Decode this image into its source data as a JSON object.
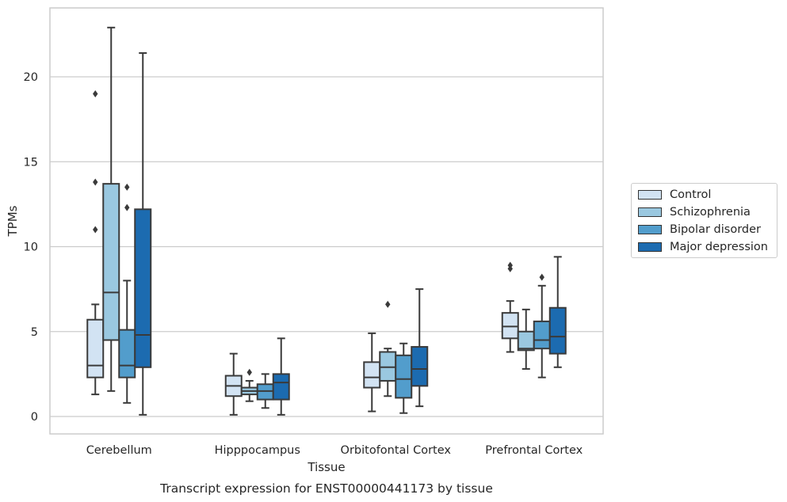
{
  "chart_data": {
    "type": "box",
    "title": "Transcript expression for ENST00000441173 by tissue",
    "xlabel": "Tissue",
    "ylabel": "TPMs",
    "ylim": [
      -1,
      24
    ],
    "yticks": [
      0,
      5,
      10,
      15,
      20
    ],
    "grid": "horizontal",
    "legend_position": "right",
    "categories": [
      "Cerebellum",
      "Hipppocampus",
      "Orbitofontal Cortex",
      "Prefrontal Cortex"
    ],
    "series": [
      {
        "name": "Control",
        "color": "#d2e3f3",
        "boxes": [
          {
            "whislo": 1.3,
            "q1": 2.3,
            "med": 3.0,
            "q3": 5.7,
            "whishi": 6.6,
            "fliers": [
              11.0,
              13.8,
              19.0
            ]
          },
          {
            "whislo": 0.1,
            "q1": 1.2,
            "med": 1.8,
            "q3": 2.4,
            "whishi": 3.7,
            "fliers": []
          },
          {
            "whislo": 0.3,
            "q1": 1.7,
            "med": 2.3,
            "q3": 3.2,
            "whishi": 4.9,
            "fliers": []
          },
          {
            "whislo": 3.8,
            "q1": 4.6,
            "med": 5.3,
            "q3": 6.1,
            "whishi": 6.8,
            "fliers": [
              8.7,
              8.9
            ]
          }
        ]
      },
      {
        "name": "Schizophrenia",
        "color": "#9ac8e0",
        "boxes": [
          {
            "whislo": 1.5,
            "q1": 4.5,
            "med": 7.3,
            "q3": 13.7,
            "whishi": 22.9,
            "fliers": []
          },
          {
            "whislo": 0.9,
            "q1": 1.3,
            "med": 1.5,
            "q3": 1.7,
            "whishi": 2.1,
            "fliers": [
              2.6
            ]
          },
          {
            "whislo": 1.2,
            "q1": 2.1,
            "med": 2.9,
            "q3": 3.8,
            "whishi": 4.0,
            "fliers": [
              6.6
            ]
          },
          {
            "whislo": 2.8,
            "q1": 3.9,
            "med": 4.0,
            "q3": 5.0,
            "whishi": 6.3,
            "fliers": []
          }
        ]
      },
      {
        "name": "Bipolar disorder",
        "color": "#529dcc",
        "boxes": [
          {
            "whislo": 0.8,
            "q1": 2.3,
            "med": 3.0,
            "q3": 5.1,
            "whishi": 8.0,
            "fliers": [
              12.3,
              13.5
            ]
          },
          {
            "whislo": 0.5,
            "q1": 1.0,
            "med": 1.5,
            "q3": 1.9,
            "whishi": 2.5,
            "fliers": []
          },
          {
            "whislo": 0.2,
            "q1": 1.1,
            "med": 2.2,
            "q3": 3.6,
            "whishi": 4.3,
            "fliers": []
          },
          {
            "whislo": 2.3,
            "q1": 4.0,
            "med": 4.5,
            "q3": 5.6,
            "whishi": 7.7,
            "fliers": [
              8.2
            ]
          }
        ]
      },
      {
        "name": "Major depression",
        "color": "#1c6bb0",
        "boxes": [
          {
            "whislo": 0.1,
            "q1": 2.9,
            "med": 4.8,
            "q3": 12.2,
            "whishi": 21.4,
            "fliers": []
          },
          {
            "whislo": 0.1,
            "q1": 1.0,
            "med": 2.0,
            "q3": 2.5,
            "whishi": 4.6,
            "fliers": []
          },
          {
            "whislo": 0.6,
            "q1": 1.8,
            "med": 2.8,
            "q3": 4.1,
            "whishi": 7.5,
            "fliers": []
          },
          {
            "whislo": 2.9,
            "q1": 3.7,
            "med": 4.7,
            "q3": 6.4,
            "whishi": 9.4,
            "fliers": []
          }
        ]
      }
    ]
  }
}
